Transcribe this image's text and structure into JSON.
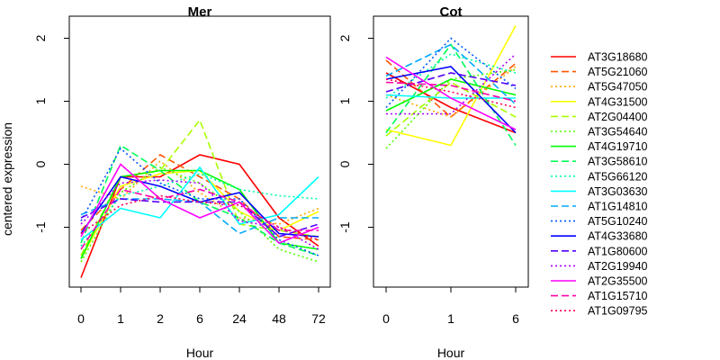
{
  "chart_data": [
    {
      "type": "line",
      "title": "Mer",
      "xlabel": "Hour",
      "ylabel": "centered expression",
      "x_categories": [
        "0",
        "1",
        "2",
        "6",
        "24",
        "48",
        "72"
      ],
      "yticks": [
        "-1",
        "0",
        "1",
        "2"
      ],
      "ylim": [
        -1.95,
        2.35
      ],
      "series": [
        {
          "name": "AT3G18680",
          "values": [
            -1.8,
            -0.2,
            -0.2,
            0.15,
            0.0,
            -0.85,
            -1.3
          ]
        },
        {
          "name": "AT5G21060",
          "values": [
            -1.05,
            -0.4,
            0.15,
            -0.2,
            -0.55,
            -1.15,
            -1.2
          ]
        },
        {
          "name": "AT5G47050",
          "values": [
            -0.35,
            -0.55,
            0.05,
            -0.45,
            -0.85,
            -0.95,
            -0.7
          ]
        },
        {
          "name": "AT4G31500",
          "values": [
            -1.5,
            -0.35,
            -0.15,
            -0.1,
            -0.75,
            -1.05,
            -0.75
          ]
        },
        {
          "name": "AT2G04400",
          "values": [
            -1.45,
            -0.2,
            -0.1,
            0.7,
            -0.95,
            -1.05,
            -1.15
          ]
        },
        {
          "name": "AT3G54640",
          "values": [
            -1.55,
            -0.45,
            -0.05,
            -0.3,
            -0.75,
            -1.35,
            -1.55
          ]
        },
        {
          "name": "AT4G19710",
          "values": [
            -1.5,
            -0.2,
            -0.1,
            -0.1,
            -0.4,
            -1.25,
            -1.35
          ]
        },
        {
          "name": "AT3G58610",
          "values": [
            -1.25,
            0.3,
            -0.1,
            -0.6,
            -0.85,
            -1.25,
            -1.45
          ]
        },
        {
          "name": "AT5G66120",
          "values": [
            -1.3,
            -0.5,
            -0.35,
            -0.15,
            -0.4,
            -0.5,
            -0.55
          ]
        },
        {
          "name": "AT3G03630",
          "values": [
            -1.2,
            -0.7,
            -0.85,
            -0.05,
            -0.95,
            -0.8,
            -0.2
          ]
        },
        {
          "name": "AT1G14810",
          "values": [
            -0.8,
            -0.55,
            -0.55,
            -0.6,
            -1.1,
            -0.85,
            -0.85
          ]
        },
        {
          "name": "AT5G10240",
          "values": [
            -0.9,
            0.25,
            -0.3,
            -0.55,
            -0.55,
            -1.2,
            -1.45
          ]
        },
        {
          "name": "AT4G33680",
          "values": [
            -1.1,
            -0.2,
            -0.35,
            -0.6,
            -0.45,
            -1.1,
            -1.15
          ]
        },
        {
          "name": "AT1G80600",
          "values": [
            -0.85,
            -0.55,
            -0.6,
            -0.6,
            -0.6,
            -1.15,
            -0.95
          ]
        },
        {
          "name": "AT2G19940",
          "values": [
            -0.95,
            -0.3,
            -0.25,
            -0.3,
            -0.9,
            -1.0,
            -1.35
          ]
        },
        {
          "name": "AT2G35500",
          "values": [
            -1.15,
            0.0,
            -0.55,
            -0.85,
            -0.6,
            -1.25,
            -1.0
          ]
        },
        {
          "name": "AT1G15710",
          "values": [
            -1.35,
            -0.4,
            -0.55,
            -0.4,
            -0.6,
            -1.05,
            -1.05
          ]
        },
        {
          "name": "AT1G09795",
          "values": [
            -1.1,
            -0.65,
            -0.5,
            -0.6,
            -0.65,
            -1.0,
            -1.2
          ]
        }
      ]
    },
    {
      "type": "line",
      "title": "Cot",
      "xlabel": "Hour",
      "x_categories": [
        "0",
        "1",
        "6"
      ],
      "yticks": [
        "-1",
        "0",
        "1",
        "2"
      ],
      "ylim": [
        -1.95,
        2.35
      ],
      "series": [
        {
          "name": "AT3G18680",
          "values": [
            1.45,
            0.9,
            0.5
          ]
        },
        {
          "name": "AT5G21060",
          "values": [
            1.65,
            0.75,
            1.6
          ]
        },
        {
          "name": "AT5G47050",
          "values": [
            1.1,
            0.75,
            1.55
          ]
        },
        {
          "name": "AT4G31500",
          "values": [
            0.55,
            0.3,
            2.2
          ]
        },
        {
          "name": "AT2G04400",
          "values": [
            0.45,
            1.3,
            0.75
          ]
        },
        {
          "name": "AT3G54640",
          "values": [
            0.25,
            1.35,
            1.5
          ]
        },
        {
          "name": "AT4G19710",
          "values": [
            0.85,
            1.35,
            1.1
          ]
        },
        {
          "name": "AT3G58610",
          "values": [
            0.5,
            1.9,
            0.3
          ]
        },
        {
          "name": "AT5G66120",
          "values": [
            1.05,
            1.75,
            1.45
          ]
        },
        {
          "name": "AT3G03630",
          "values": [
            1.1,
            1.05,
            1.05
          ]
        },
        {
          "name": "AT1G14810",
          "values": [
            1.4,
            1.9,
            0.95
          ]
        },
        {
          "name": "AT5G10240",
          "values": [
            0.9,
            2.0,
            1.2
          ]
        },
        {
          "name": "AT4G33680",
          "values": [
            1.35,
            1.55,
            0.5
          ]
        },
        {
          "name": "AT1G80600",
          "values": [
            1.15,
            1.45,
            1.25
          ]
        },
        {
          "name": "AT2G19940",
          "values": [
            0.8,
            0.8,
            1.75
          ]
        },
        {
          "name": "AT2G35500",
          "values": [
            1.7,
            1.05,
            0.55
          ]
        },
        {
          "name": "AT1G15710",
          "values": [
            1.3,
            1.25,
            1.0
          ]
        },
        {
          "name": "AT1G09795",
          "values": [
            1.35,
            1.15,
            0.9
          ]
        }
      ]
    }
  ],
  "legend": {
    "placement": "right",
    "entries": [
      {
        "name": "AT3G18680",
        "color": "#ff0000",
        "dash": "solid"
      },
      {
        "name": "AT5G21060",
        "color": "#ff5500",
        "dash": "dashed"
      },
      {
        "name": "AT5G47050",
        "color": "#ffaa00",
        "dash": "dotted"
      },
      {
        "name": "AT4G31500",
        "color": "#ffff00",
        "dash": "solid"
      },
      {
        "name": "AT2G04400",
        "color": "#aaff00",
        "dash": "dashed"
      },
      {
        "name": "AT3G54640",
        "color": "#55ff00",
        "dash": "dotted"
      },
      {
        "name": "AT4G19710",
        "color": "#00ff00",
        "dash": "solid"
      },
      {
        "name": "AT3G58610",
        "color": "#00ff55",
        "dash": "dashed"
      },
      {
        "name": "AT5G66120",
        "color": "#00ffaa",
        "dash": "dotted"
      },
      {
        "name": "AT3G03630",
        "color": "#00ffff",
        "dash": "solid"
      },
      {
        "name": "AT1G14810",
        "color": "#00aaff",
        "dash": "dashed"
      },
      {
        "name": "AT5G10240",
        "color": "#0055ff",
        "dash": "dotted"
      },
      {
        "name": "AT4G33680",
        "color": "#0000ff",
        "dash": "solid"
      },
      {
        "name": "AT1G80600",
        "color": "#5500ff",
        "dash": "dashed"
      },
      {
        "name": "AT2G19940",
        "color": "#aa00ff",
        "dash": "dotted"
      },
      {
        "name": "AT2G35500",
        "color": "#ff00ff",
        "dash": "solid"
      },
      {
        "name": "AT1G15710",
        "color": "#ff00aa",
        "dash": "dashed"
      },
      {
        "name": "AT1G09795",
        "color": "#ff0055",
        "dash": "dotted"
      }
    ]
  }
}
